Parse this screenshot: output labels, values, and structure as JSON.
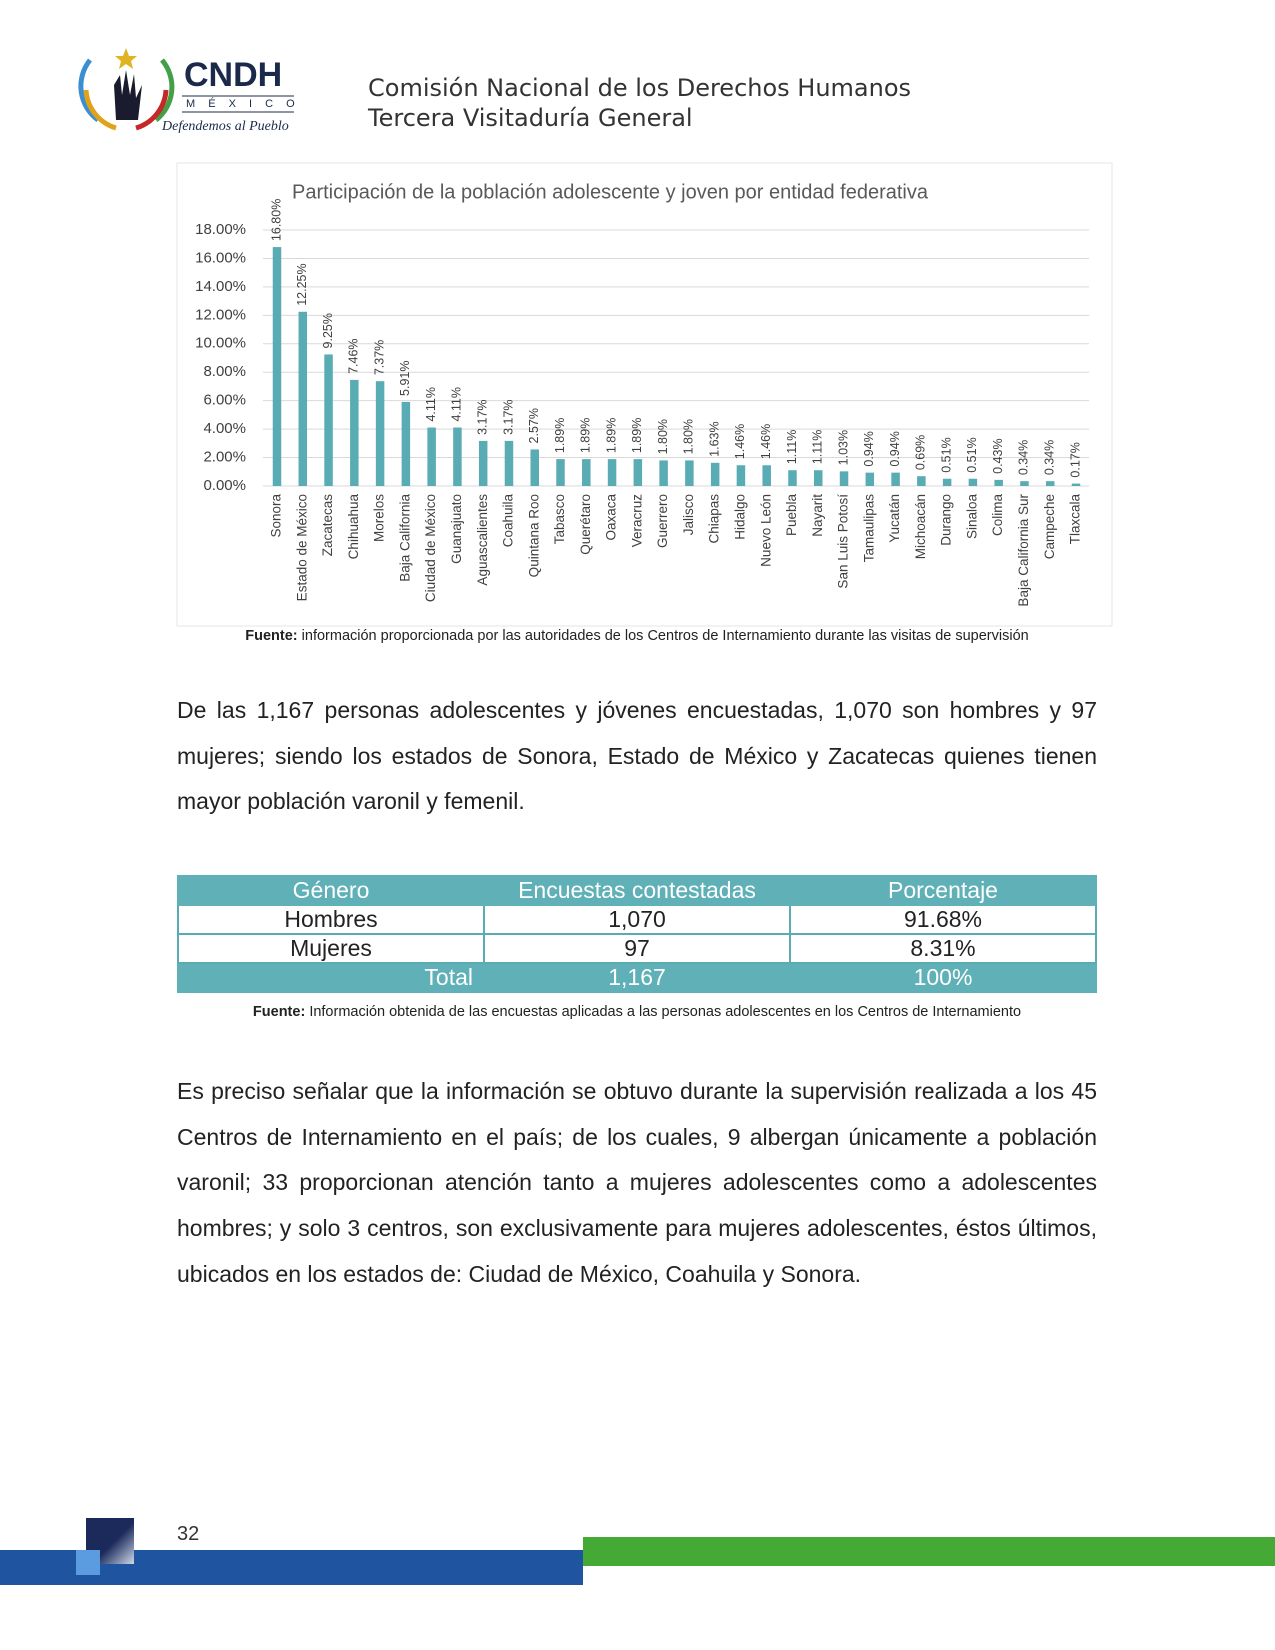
{
  "logo": {
    "name": "CNDH",
    "country": "M É X I C O",
    "motto": "Defendemos al Pueblo"
  },
  "header": {
    "line1": "Comisión Nacional de los Derechos Humanos",
    "line2": "Tercera Visitaduría General"
  },
  "chart_data": {
    "type": "bar",
    "title": "Participación de la población adolescente y joven por entidad federativa",
    "categories": [
      "Sonora",
      "Estado de México",
      "Zacatecas",
      "Chihuahua",
      "Morelos",
      "Baja California",
      "Ciudad de México",
      "Guanajuato",
      "Aguascalientes",
      "Coahuila",
      "Quintana Roo",
      "Tabasco",
      "Querétaro",
      "Oaxaca",
      "Veracruz",
      "Guerrero",
      "Jalisco",
      "Chiapas",
      "Hidalgo",
      "Nuevo León",
      "Puebla",
      "Nayarit",
      "San Luis Potosí",
      "Tamaulipas",
      "Yucatán",
      "Michoacán",
      "Durango",
      "Sinaloa",
      "Colima",
      "Baja California Sur",
      "Campeche",
      "Tlaxcala"
    ],
    "values": [
      16.8,
      12.25,
      9.25,
      7.46,
      7.37,
      5.91,
      4.11,
      4.11,
      3.17,
      3.17,
      2.57,
      1.89,
      1.89,
      1.89,
      1.89,
      1.8,
      1.8,
      1.63,
      1.46,
      1.46,
      1.11,
      1.11,
      1.03,
      0.94,
      0.94,
      0.69,
      0.51,
      0.51,
      0.43,
      0.34,
      0.34,
      0.17
    ],
    "value_labels": [
      "16.80%",
      "12.25%",
      "9.25%",
      "7.46%",
      "7.37%",
      "5.91%",
      "4.11%",
      "4.11%",
      "3.17%",
      "3.17%",
      "2.57%",
      "1.89%",
      "1.89%",
      "1.89%",
      "1.89%",
      "1.80%",
      "1.80%",
      "1.63%",
      "1.46%",
      "1.46%",
      "1.11%",
      "1.11%",
      "1.03%",
      "0.94%",
      "0.94%",
      "0.69%",
      "0.51%",
      "0.51%",
      "0.43%",
      "0.34%",
      "0.34%",
      "0.17%"
    ],
    "color": "#5aacb4",
    "ylim": [
      0,
      18
    ],
    "yticks": [
      {
        "value": 0,
        "label": "0.00%"
      },
      {
        "value": 2,
        "label": "2.00%"
      },
      {
        "value": 4,
        "label": "4.00%"
      },
      {
        "value": 6,
        "label": "6.00%"
      },
      {
        "value": 8,
        "label": "8.00%"
      },
      {
        "value": 10,
        "label": "10.00%"
      },
      {
        "value": 12,
        "label": "12.00%"
      },
      {
        "value": 14,
        "label": "14.00%"
      },
      {
        "value": 16,
        "label": "16.00%"
      },
      {
        "value": 18,
        "label": "18.00%"
      }
    ],
    "grid": true
  },
  "chart_source": {
    "label": "Fuente:",
    "text": "información proporcionada por las autoridades de los Centros de Internamiento durante las visitas de supervisión"
  },
  "paragraph1": "De las 1,167 personas adolescentes y jóvenes encuestadas, 1,070 son hombres y 97 mujeres; siendo los estados de Sonora, Estado de México y Zacatecas quienes tienen mayor población varonil y femenil.",
  "table": {
    "headers": [
      "Género",
      "Encuestas contestadas",
      "Porcentaje"
    ],
    "rows": [
      [
        "Hombres",
        "1,070",
        "91.68%"
      ],
      [
        "Mujeres",
        "97",
        "8.31%"
      ]
    ],
    "total": [
      "Total",
      "1,167",
      "100%"
    ]
  },
  "table_source": {
    "label": "Fuente:",
    "text": "Información obtenida de las encuestas aplicadas a las personas adolescentes en los Centros de Internamiento"
  },
  "paragraph2": "Es preciso señalar que la información se obtuvo durante la supervisión realizada a los 45 Centros de Internamiento en el país; de los cuales, 9 albergan únicamente a población varonil; 33 proporcionan atención tanto a mujeres adolescentes como a adolescentes hombres; y solo 3 centros, son exclusivamente para mujeres adolescentes, éstos últimos, ubicados en los estados de: Ciudad de México, Coahuila y Sonora.",
  "page_number": "32"
}
